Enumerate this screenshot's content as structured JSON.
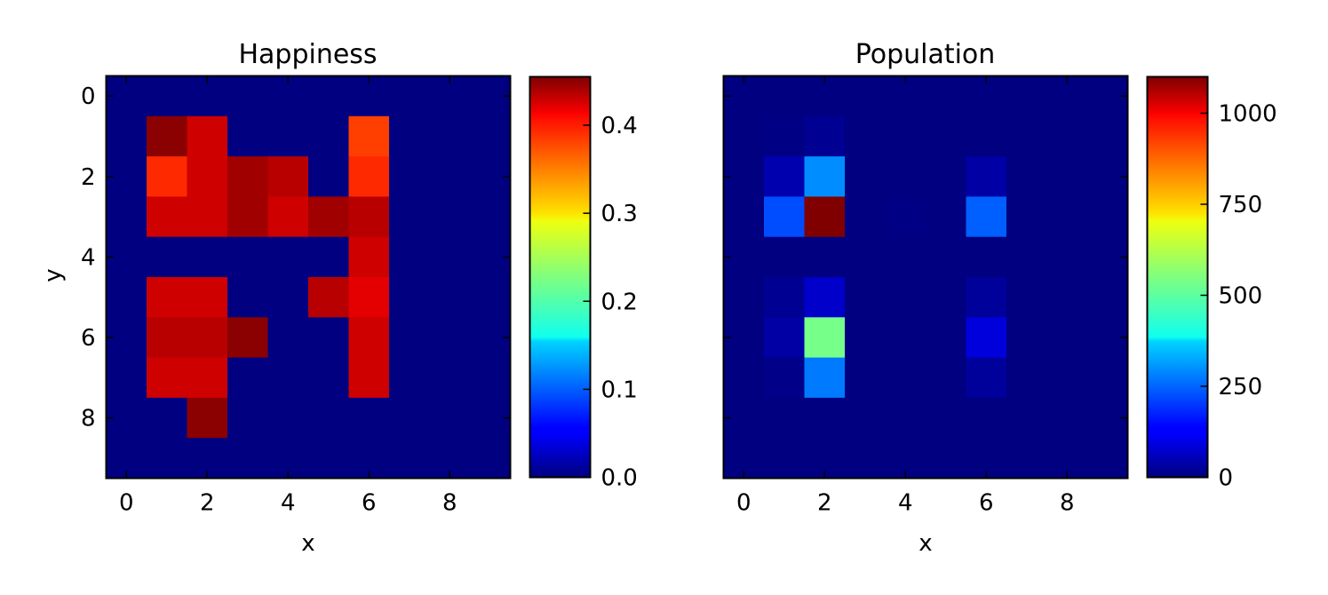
{
  "chart_data": [
    {
      "type": "heatmap",
      "title": "Happiness",
      "xlabel": "x",
      "ylabel": "y",
      "x_ticks": [
        0,
        2,
        4,
        6,
        8
      ],
      "y_ticks": [
        0,
        2,
        4,
        6,
        8
      ],
      "x_tick_labels": [
        "0",
        "2",
        "4",
        "6",
        "8"
      ],
      "y_tick_labels": [
        "0",
        "2",
        "4",
        "6",
        "8"
      ],
      "colormap": "jet",
      "clim": [
        0,
        0.455
      ],
      "colorbar_ticks": [
        0.0,
        0.1,
        0.2,
        0.3,
        0.4
      ],
      "colorbar_tick_labels": [
        "0.0",
        "0.1",
        "0.2",
        "0.3",
        "0.4"
      ],
      "grid": false,
      "z": [
        [
          0,
          0,
          0,
          0,
          0,
          0,
          0,
          0,
          0,
          0
        ],
        [
          0,
          0.45,
          0.42,
          0,
          0,
          0,
          0.37,
          0,
          0,
          0
        ],
        [
          0,
          0.38,
          0.42,
          0.44,
          0.43,
          0,
          0.38,
          0,
          0,
          0
        ],
        [
          0,
          0.42,
          0.42,
          0.44,
          0.42,
          0.44,
          0.43,
          0,
          0,
          0
        ],
        [
          0,
          0,
          0,
          0,
          0,
          0,
          0.42,
          0,
          0,
          0
        ],
        [
          0,
          0.42,
          0.42,
          0,
          0,
          0.43,
          0.41,
          0,
          0,
          0
        ],
        [
          0,
          0.43,
          0.43,
          0.45,
          0,
          0,
          0.42,
          0,
          0,
          0
        ],
        [
          0,
          0.42,
          0.42,
          0,
          0,
          0,
          0.42,
          0,
          0,
          0
        ],
        [
          0,
          0,
          0.45,
          0,
          0,
          0,
          0,
          0,
          0,
          0
        ],
        [
          0,
          0,
          0,
          0,
          0,
          0,
          0,
          0,
          0,
          0
        ]
      ]
    },
    {
      "type": "heatmap",
      "title": "Population",
      "xlabel": "x",
      "ylabel": "",
      "x_ticks": [
        0,
        2,
        4,
        6,
        8
      ],
      "y_ticks": [
        0,
        2,
        4,
        6,
        8
      ],
      "x_tick_labels": [
        "0",
        "2",
        "4",
        "6",
        "8"
      ],
      "y_tick_labels": [],
      "colormap": "jet",
      "clim": [
        0,
        1100
      ],
      "colorbar_ticks": [
        0,
        250,
        500,
        750,
        1000
      ],
      "colorbar_tick_labels": [
        "0",
        "250",
        "500",
        "750",
        "1000"
      ],
      "grid": false,
      "z": [
        [
          0,
          0,
          0,
          0,
          0,
          0,
          0,
          0,
          0,
          0
        ],
        [
          0,
          5,
          20,
          0,
          0,
          0,
          0,
          0,
          0,
          0
        ],
        [
          0,
          50,
          290,
          0,
          0,
          0,
          40,
          0,
          0,
          0
        ],
        [
          0,
          220,
          1100,
          0,
          5,
          0,
          240,
          0,
          0,
          0
        ],
        [
          0,
          0,
          0,
          0,
          0,
          0,
          0,
          0,
          0,
          0
        ],
        [
          0,
          20,
          80,
          0,
          0,
          0,
          30,
          0,
          0,
          0
        ],
        [
          0,
          40,
          540,
          0,
          0,
          0,
          100,
          0,
          0,
          0
        ],
        [
          0,
          10,
          270,
          0,
          0,
          0,
          30,
          0,
          0,
          0
        ],
        [
          0,
          0,
          0,
          0,
          0,
          0,
          0,
          0,
          0,
          0
        ],
        [
          0,
          0,
          0,
          0,
          0,
          0,
          0,
          0,
          0,
          0
        ]
      ]
    }
  ]
}
